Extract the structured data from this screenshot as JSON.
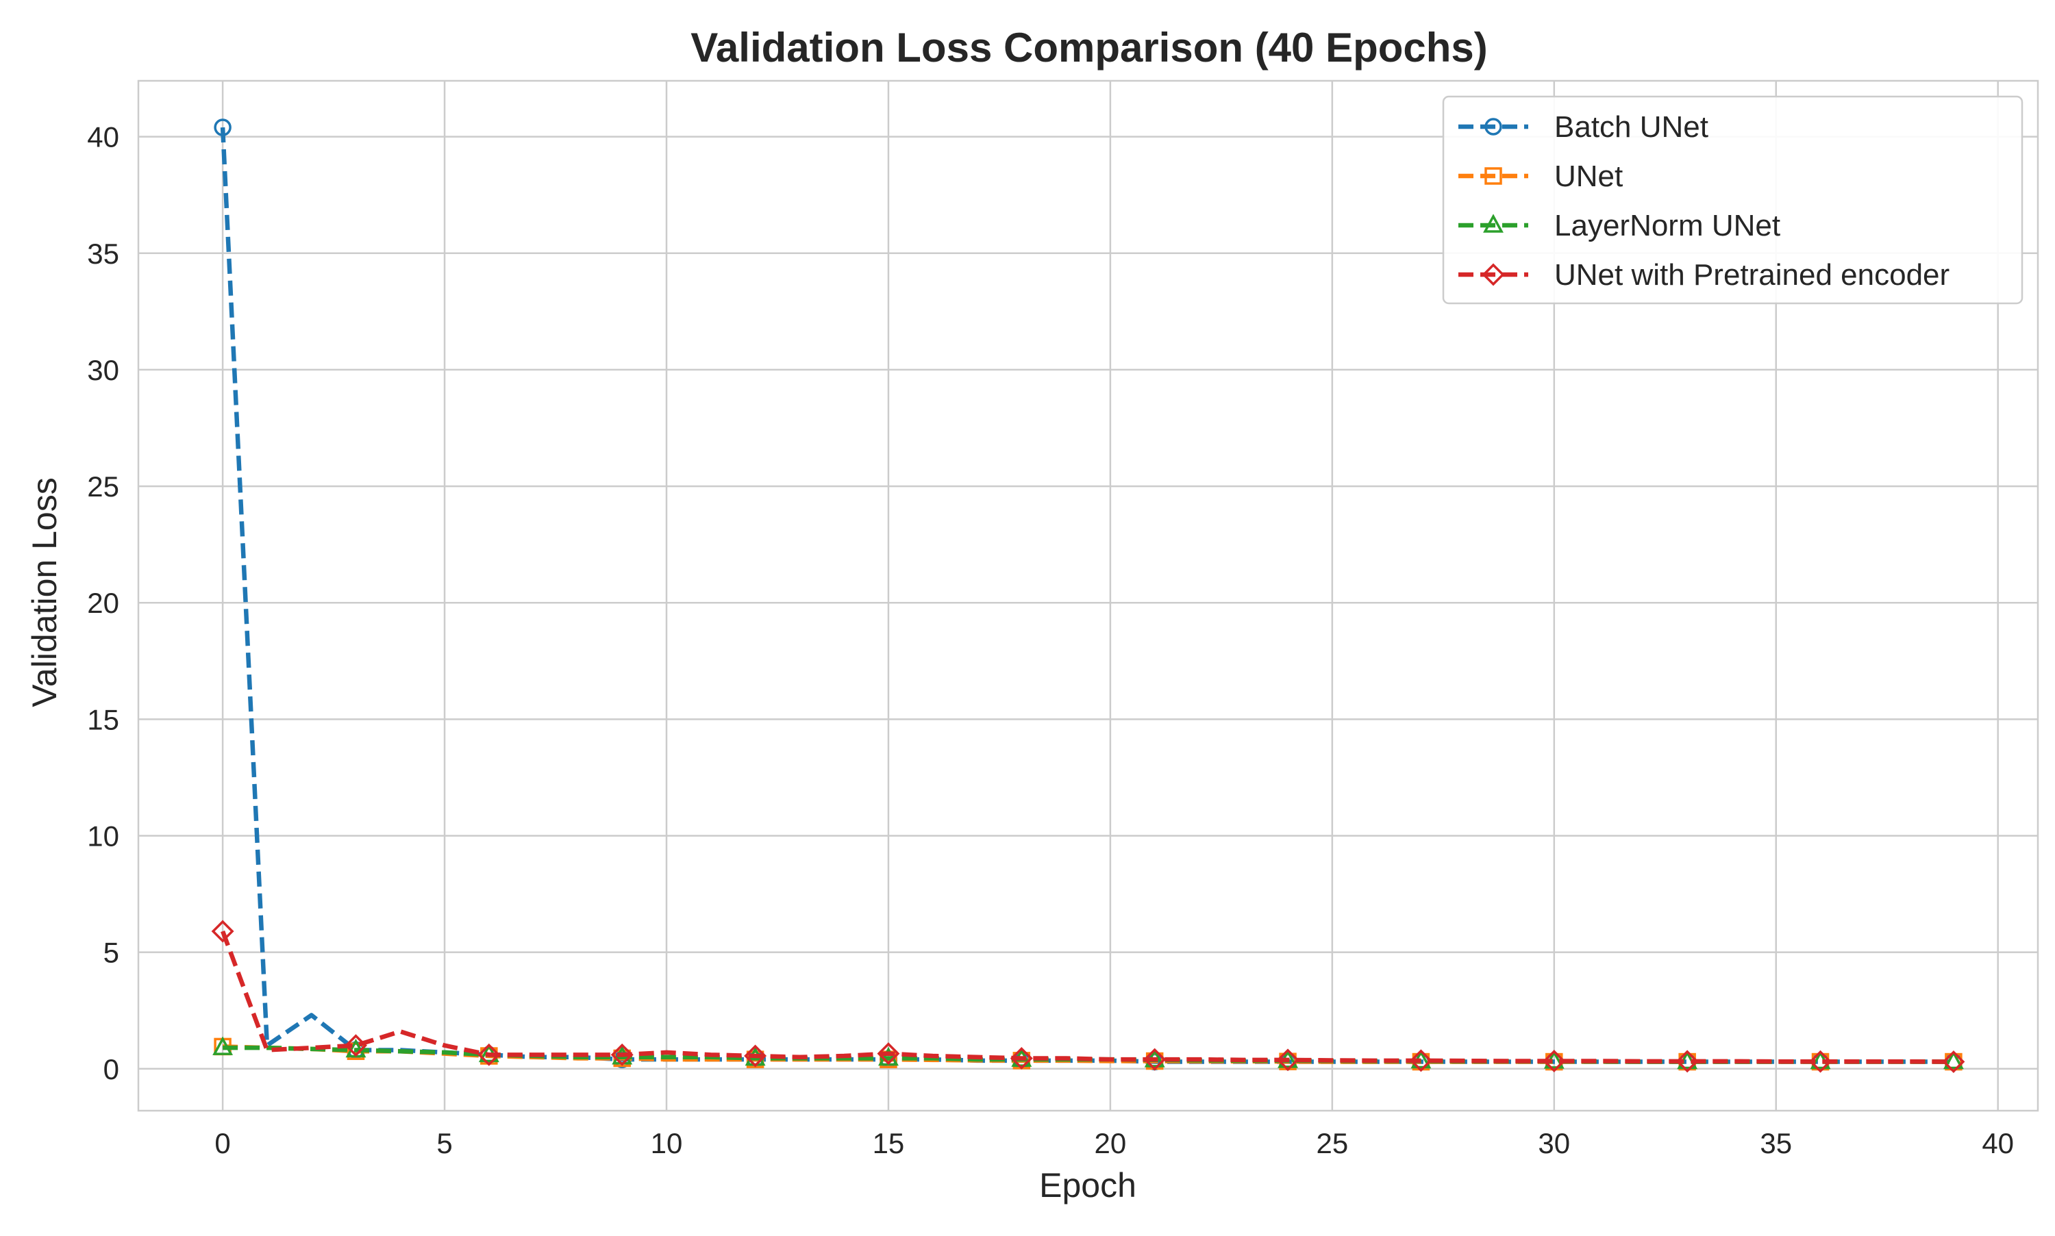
{
  "chart_data": {
    "type": "line",
    "title": "Validation Loss Comparison (40 Epochs)",
    "xlabel": "Epoch",
    "ylabel": "Validation Loss",
    "xlim": [
      -1.9,
      40.9
    ],
    "ylim": [
      -1.8,
      42.4
    ],
    "xticks": [
      0,
      5,
      10,
      15,
      20,
      25,
      30,
      35,
      40
    ],
    "yticks": [
      0,
      5,
      10,
      15,
      20,
      25,
      30,
      35,
      40
    ],
    "grid": true,
    "legend_position": "top-right",
    "marker_every": 3,
    "x": [
      0,
      1,
      2,
      3,
      4,
      5,
      6,
      7,
      8,
      9,
      10,
      11,
      12,
      13,
      14,
      15,
      16,
      17,
      18,
      19,
      20,
      21,
      22,
      23,
      24,
      25,
      26,
      27,
      28,
      29,
      30,
      31,
      32,
      33,
      34,
      35,
      36,
      37,
      38,
      39
    ],
    "series": [
      {
        "name": "Batch UNet",
        "color": "#1f77b4",
        "marker": "circle",
        "values": [
          40.4,
          1.0,
          2.3,
          0.8,
          0.8,
          0.7,
          0.6,
          0.5,
          0.5,
          0.4,
          0.4,
          0.4,
          0.4,
          0.4,
          0.4,
          0.4,
          0.4,
          0.35,
          0.35,
          0.35,
          0.35,
          0.3,
          0.3,
          0.3,
          0.3,
          0.3,
          0.3,
          0.3,
          0.3,
          0.3,
          0.3,
          0.3,
          0.3,
          0.3,
          0.3,
          0.3,
          0.3,
          0.3,
          0.3,
          0.3
        ]
      },
      {
        "name": "UNet",
        "color": "#ff7f0e",
        "marker": "square",
        "values": [
          0.95,
          0.9,
          0.85,
          0.75,
          0.75,
          0.65,
          0.55,
          0.5,
          0.45,
          0.45,
          0.4,
          0.4,
          0.4,
          0.4,
          0.4,
          0.4,
          0.38,
          0.36,
          0.35,
          0.35,
          0.33,
          0.33,
          0.32,
          0.32,
          0.31,
          0.3,
          0.3,
          0.3,
          0.3,
          0.3,
          0.3,
          0.3,
          0.3,
          0.3,
          0.3,
          0.3,
          0.3,
          0.3,
          0.3,
          0.3
        ]
      },
      {
        "name": "LayerNorm UNet",
        "color": "#2ca02c",
        "marker": "triangle",
        "values": [
          0.9,
          0.9,
          0.85,
          0.8,
          0.75,
          0.7,
          0.6,
          0.55,
          0.5,
          0.5,
          0.5,
          0.5,
          0.45,
          0.45,
          0.45,
          0.45,
          0.45,
          0.4,
          0.4,
          0.4,
          0.4,
          0.38,
          0.36,
          0.35,
          0.35,
          0.34,
          0.33,
          0.33,
          0.32,
          0.32,
          0.32,
          0.31,
          0.3,
          0.3,
          0.3,
          0.3,
          0.3,
          0.3,
          0.3,
          0.3
        ]
      },
      {
        "name": "UNet with Pretrained encoder",
        "color": "#d62728",
        "marker": "diamond",
        "values": [
          5.9,
          0.8,
          0.9,
          1.0,
          1.6,
          1.0,
          0.6,
          0.6,
          0.6,
          0.6,
          0.7,
          0.6,
          0.55,
          0.5,
          0.55,
          0.65,
          0.55,
          0.5,
          0.45,
          0.45,
          0.4,
          0.4,
          0.4,
          0.38,
          0.38,
          0.36,
          0.35,
          0.35,
          0.34,
          0.33,
          0.33,
          0.33,
          0.32,
          0.32,
          0.32,
          0.31,
          0.31,
          0.31,
          0.31,
          0.3
        ]
      }
    ]
  }
}
